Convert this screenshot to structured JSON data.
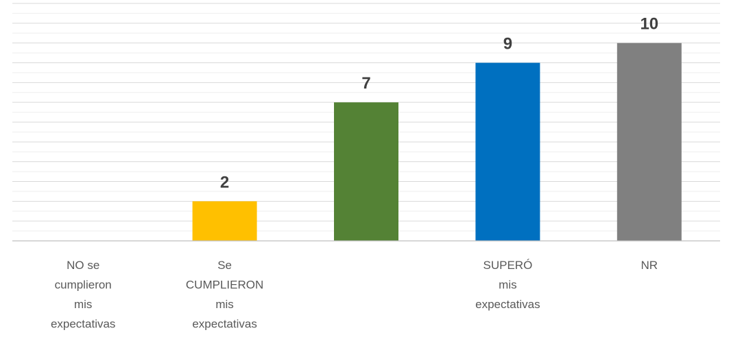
{
  "chart_data": {
    "type": "bar",
    "title": "",
    "xlabel": "",
    "ylabel": "",
    "categories": [
      [
        "NO se",
        "cumplieron",
        "mis",
        "expectativas"
      ],
      [
        "Se",
        "CUMPLIERON",
        "mis",
        "expectativas"
      ],
      [
        ""
      ],
      [
        "SUPERÓ",
        "mis",
        "expectativas"
      ],
      [
        "NR"
      ]
    ],
    "values": [
      0,
      2,
      7,
      9,
      10
    ],
    "data_labels": [
      "",
      "2",
      "7",
      "9",
      "10"
    ],
    "colors": [
      "#ffc000",
      "#ffc000",
      "#548235",
      "#0070c0",
      "#808080"
    ],
    "ylim": [
      0,
      12
    ],
    "grid": true,
    "legend": "none"
  }
}
